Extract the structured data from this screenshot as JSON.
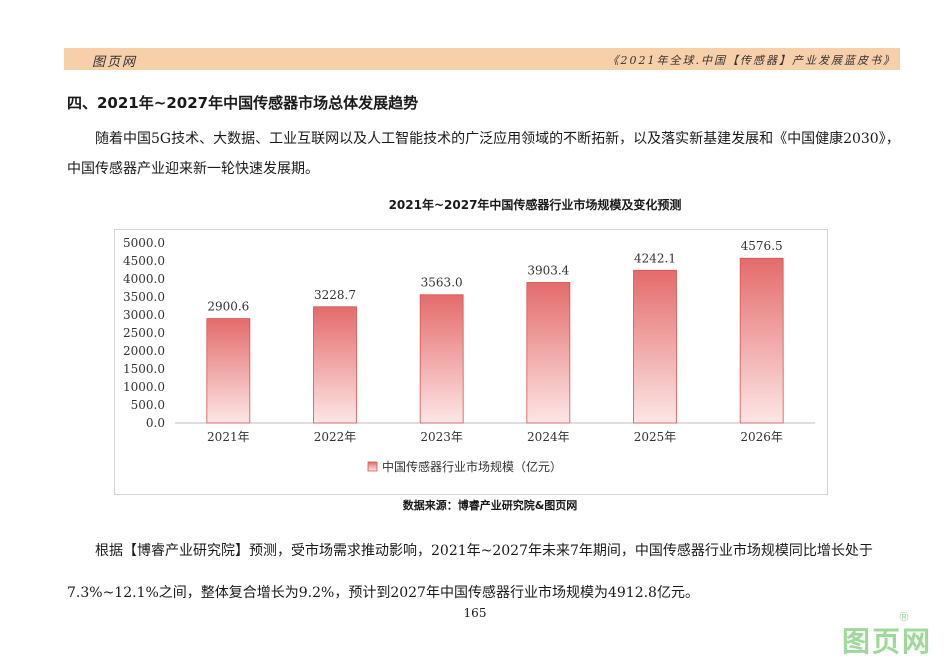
{
  "header": {
    "left_text": "图页网",
    "right_text": "《2021年全球.中国【传感器】产业发展蓝皮书》",
    "bar_color": "#f7cfa9"
  },
  "section": {
    "heading": "四、2021年~2027年中国传感器市场总体发展趋势",
    "paragraph1": "随着中国5G技术、大数据、工业互联网以及人工智能技术的广泛应用领域的不断拓新，以及落实新基建发展和《中国健康2030》，中国传感器产业迎来新一轮快速发展期。",
    "paragraph2": "根据【博睿产业研究院】预测，受市场需求推动影响，2021年~2027年未来7年期间，中国传感器行业市场规模同比增长处于7.3%~12.1%之间，整体复合增长为9.2%，预计到2027年中国传感器行业市场规模为4912.8亿元。"
  },
  "chart_title": "2021年~2027年中国传感器行业市场规模及变化预测",
  "source": "数据来源：博睿产业研究院&图页网",
  "page_number": "165",
  "watermark": {
    "text": "图页网",
    "mark": "®",
    "color": "#9fd99a"
  },
  "chart_data": {
    "type": "bar",
    "title": "2021年~2027年中国传感器行业市场规模及变化预测",
    "categories": [
      "2021年",
      "2022年",
      "2023年",
      "2024年",
      "2025年",
      "2026年"
    ],
    "series": [
      {
        "name": "中国传感器行业市场规模（亿元）",
        "values": [
          2900.6,
          3228.7,
          3563.0,
          3903.4,
          4242.1,
          4576.5
        ],
        "data_labels": [
          "2900.6",
          "3228.7",
          "3563.0",
          "3903.4",
          "4242.1",
          "4576.5"
        ]
      }
    ],
    "ylim": [
      0,
      5000
    ],
    "yticks": [
      0,
      500,
      1000,
      1500,
      2000,
      2500,
      3000,
      3500,
      4000,
      4500,
      5000
    ],
    "ytick_labels": [
      "0.0",
      "500.0",
      "1000.0",
      "1500.0",
      "2000.0",
      "2500.0",
      "3000.0",
      "3500.0",
      "4000.0",
      "4500.0",
      "5000.0"
    ],
    "grid": false,
    "legend_position": "bottom",
    "bar_color_top": "#e46b6b",
    "bar_color_bottom": "#fde6e6",
    "bar_edge_color": "#d9534f"
  }
}
